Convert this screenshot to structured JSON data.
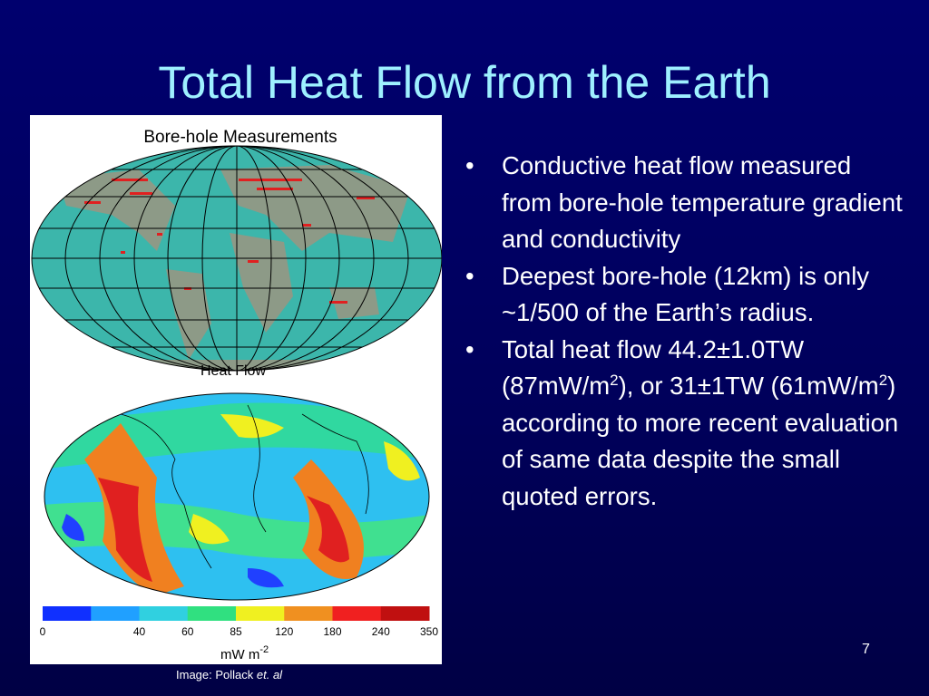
{
  "title": "Total Heat Flow from the Earth",
  "figure": {
    "top_title": "Bore-hole Measurements",
    "bottom_title": "Heat Flow",
    "colorbar": {
      "labels": [
        "0",
        "40",
        "60",
        "85",
        "120",
        "180",
        "240",
        "350"
      ],
      "unit": "mW m",
      "unit_exp": "-2"
    }
  },
  "caption": {
    "text": "Image: Pollack",
    "italic": "et. al"
  },
  "bullets": [
    {
      "text": "Conductive heat flow measured from bore-hole temperature gradient and conductivity"
    },
    {
      "text": "Deepest bore-hole (12km) is only ~1/500 of the Earth’s radius."
    },
    {
      "parts": [
        "Total heat flow 44.2±1.0TW (87mW/m",
        "2",
        "), or 31±1TW (61mW/m",
        "2",
        ") according to more recent evaluation of same data despite the small quoted errors."
      ]
    }
  ],
  "page_number": "7"
}
